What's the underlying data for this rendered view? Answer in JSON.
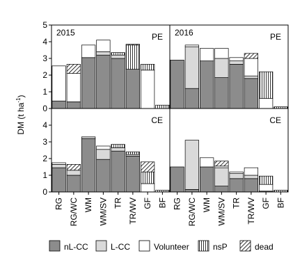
{
  "figure": {
    "ylabel": "DM (t ha",
    "ylabel_sup": "-1",
    "y_ticks": [
      "0",
      "1",
      "2",
      "3",
      "4",
      "5"
    ],
    "categories": [
      "RG",
      "RG/WC",
      "WM",
      "WM/SV",
      "TR",
      "TR/WV",
      "GF",
      "BF"
    ]
  },
  "legend": [
    {
      "name": "nL-CC",
      "color": "#8c8c8c",
      "pattern": "solid"
    },
    {
      "name": "L-CC",
      "color": "#d9d9d9",
      "pattern": "solid"
    },
    {
      "name": "Volunteer",
      "color": "#ffffff",
      "pattern": "solid"
    },
    {
      "name": "nsP",
      "color": "#ffffff",
      "pattern": "vertical"
    },
    {
      "name": "dead",
      "color": "#ffffff",
      "pattern": "diagonal"
    }
  ],
  "chart_data": [
    {
      "type": "bar",
      "stacked": true,
      "panel": "2015 PE",
      "year_label": "2015",
      "treatment_label": "PE",
      "categories": [
        "RG",
        "RG/WC",
        "WM",
        "WM/SV",
        "TR",
        "TR/WV",
        "GF",
        "BF"
      ],
      "ylim": [
        0,
        5
      ],
      "series": [
        {
          "name": "nL-CC",
          "values": [
            0.45,
            0.4,
            3.05,
            3.2,
            3.0,
            2.35,
            0,
            0
          ]
        },
        {
          "name": "L-CC",
          "values": [
            0,
            0,
            0,
            0.2,
            0.2,
            0,
            0,
            0
          ]
        },
        {
          "name": "Volunteer",
          "values": [
            2.1,
            1.7,
            0.75,
            0.7,
            0,
            0,
            2.3,
            0
          ]
        },
        {
          "name": "nsP",
          "values": [
            0,
            0,
            0,
            0,
            0.15,
            1.45,
            0.35,
            0.2
          ]
        },
        {
          "name": "dead",
          "values": [
            0,
            0.55,
            0,
            0,
            0,
            0.05,
            0,
            0
          ]
        }
      ]
    },
    {
      "type": "bar",
      "stacked": true,
      "panel": "2016 PE",
      "year_label": "2016",
      "treatment_label": "PE",
      "categories": [
        "RG",
        "RG/WC",
        "WM",
        "WM/SV",
        "TR",
        "TR/WV",
        "GF",
        "BF"
      ],
      "ylim": [
        0,
        5
      ],
      "series": [
        {
          "name": "nL-CC",
          "values": [
            2.9,
            1.2,
            2.85,
            1.85,
            2.65,
            1.8,
            0,
            0
          ]
        },
        {
          "name": "L-CC",
          "values": [
            0,
            2.5,
            0,
            1.15,
            0.2,
            0.15,
            0,
            0
          ]
        },
        {
          "name": "Volunteer",
          "values": [
            0,
            0.1,
            0.75,
            0.6,
            0.2,
            1.05,
            0.6,
            0
          ]
        },
        {
          "name": "nsP",
          "values": [
            0,
            0,
            0,
            0,
            0,
            0,
            1.6,
            0.1
          ]
        },
        {
          "name": "dead",
          "values": [
            0,
            0,
            0,
            0,
            0,
            0.3,
            0,
            0
          ]
        }
      ]
    },
    {
      "type": "bar",
      "stacked": true,
      "panel": "2015 CE",
      "year_label": "",
      "treatment_label": "CE",
      "categories": [
        "RG",
        "RG/WC",
        "WM",
        "WM/SV",
        "TR",
        "TR/WV",
        "GF",
        "BF"
      ],
      "ylim": [
        0,
        5
      ],
      "series": [
        {
          "name": "nL-CC",
          "values": [
            1.45,
            1.0,
            3.2,
            1.95,
            2.45,
            2.15,
            0,
            0
          ]
        },
        {
          "name": "L-CC",
          "values": [
            0.2,
            0.3,
            0.1,
            0.6,
            0.2,
            0.1,
            0,
            0
          ]
        },
        {
          "name": "Volunteer",
          "values": [
            0.1,
            0,
            0,
            0.2,
            0,
            0,
            0.5,
            0
          ]
        },
        {
          "name": "nsP",
          "values": [
            0,
            0,
            0,
            0,
            0.2,
            0.15,
            0.7,
            0.1
          ]
        },
        {
          "name": "dead",
          "values": [
            0,
            0.35,
            0,
            0,
            0,
            0,
            0.6,
            0
          ]
        }
      ]
    },
    {
      "type": "bar",
      "stacked": true,
      "panel": "2016 CE",
      "year_label": "",
      "treatment_label": "CE",
      "categories": [
        "RG",
        "RG/WC",
        "WM",
        "WM/SV",
        "TR",
        "TR/WV",
        "GF",
        "BF"
      ],
      "ylim": [
        0,
        5
      ],
      "series": [
        {
          "name": "nL-CC",
          "values": [
            1.5,
            0.15,
            1.5,
            0.35,
            0.8,
            0.8,
            0.05,
            0
          ]
        },
        {
          "name": "L-CC",
          "values": [
            0,
            2.95,
            0,
            1.1,
            0.3,
            0.2,
            0,
            0
          ]
        },
        {
          "name": "Volunteer",
          "values": [
            0,
            0,
            0.55,
            0.1,
            0.1,
            0.45,
            0.4,
            0
          ]
        },
        {
          "name": "nsP",
          "values": [
            0,
            0,
            0,
            0,
            0,
            0,
            0.5,
            0.1
          ]
        },
        {
          "name": "dead",
          "values": [
            0,
            0,
            0,
            0.3,
            0,
            0,
            0,
            0
          ]
        }
      ]
    }
  ]
}
